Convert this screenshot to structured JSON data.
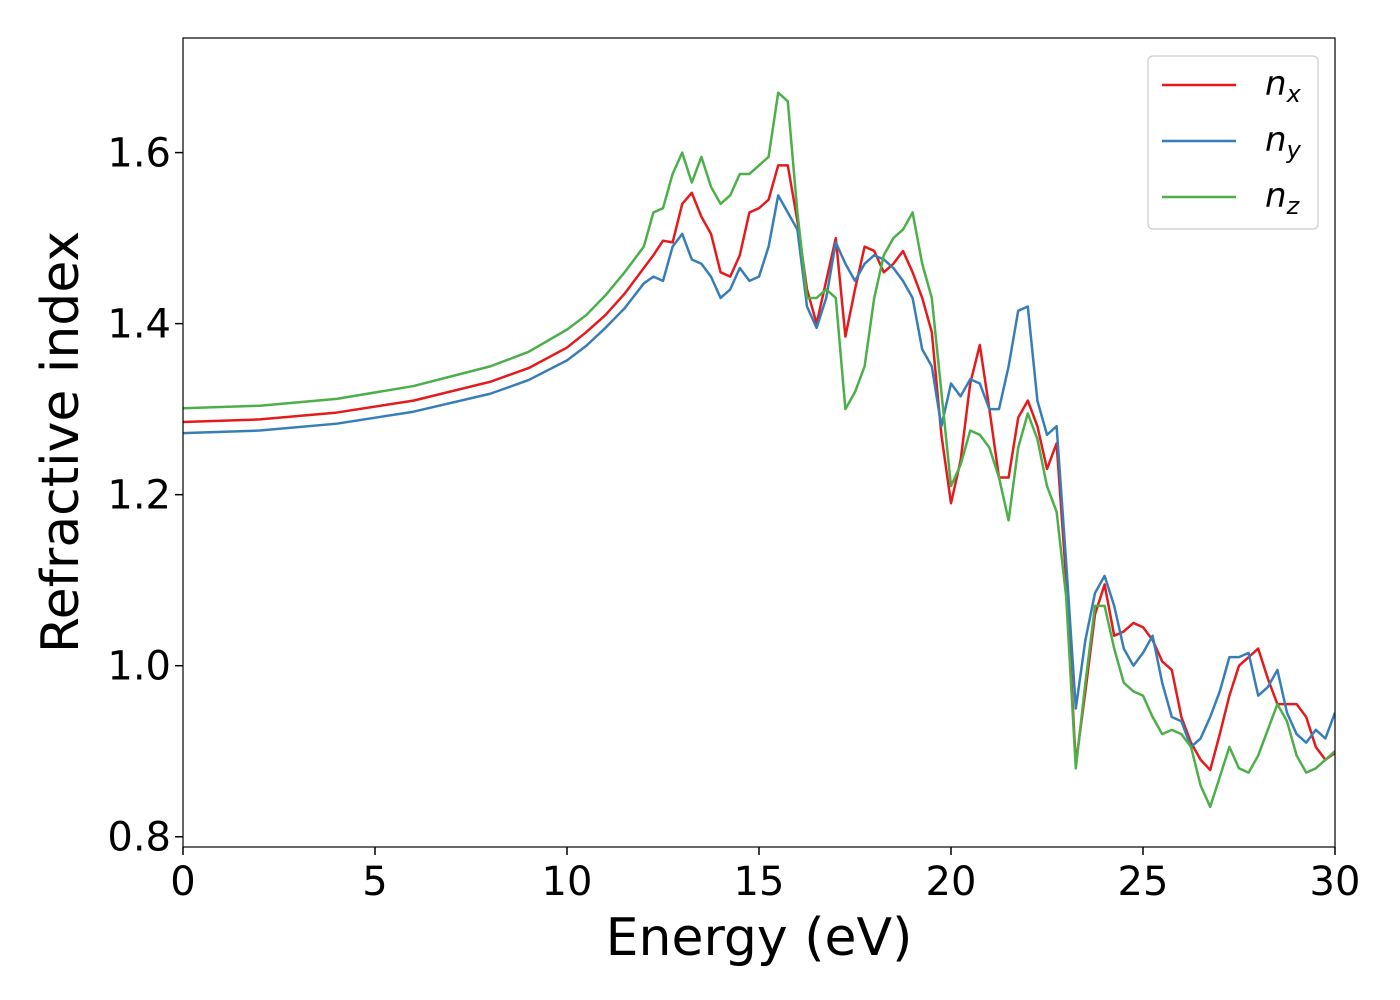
{
  "chart_data": {
    "type": "line",
    "xlabel": "Energy (eV)",
    "ylabel": "Refractive index",
    "xlim": [
      0,
      30
    ],
    "xticks": [
      0,
      5,
      10,
      15,
      20,
      25,
      30
    ],
    "ylim": [
      0.788,
      1.734
    ],
    "yticks": [
      0.8,
      {
        "value": 1,
        "label": "1.0"
      },
      1.2,
      1.4,
      1.6
    ],
    "grid": false,
    "legend": "upper right",
    "x": [
      0,
      2,
      4,
      6,
      8,
      9,
      10,
      10.5,
      11,
      11.5,
      12,
      12.25,
      12.5,
      12.75,
      13,
      13.25,
      13.5,
      13.75,
      14,
      14.25,
      14.5,
      14.75,
      15,
      15.25,
      15.5,
      15.75,
      16,
      16.25,
      16.5,
      16.75,
      17,
      17.25,
      17.5,
      17.75,
      18,
      18.25,
      18.5,
      18.75,
      19,
      19.25,
      19.5,
      19.75,
      20,
      20.25,
      20.5,
      20.75,
      21,
      21.25,
      21.5,
      21.75,
      22,
      22.25,
      22.5,
      22.75,
      23,
      23.25,
      23.5,
      23.75,
      24,
      24.25,
      24.5,
      24.75,
      25,
      25.25,
      25.5,
      25.75,
      26,
      26.25,
      26.5,
      26.75,
      27,
      27.25,
      27.5,
      27.75,
      28,
      28.25,
      28.5,
      28.75,
      29,
      29.25,
      29.5,
      29.75,
      30
    ],
    "series": [
      {
        "name": "nx",
        "color": "#e41a1c",
        "values": [
          1.285,
          1.288,
          1.296,
          1.31,
          1.332,
          1.348,
          1.372,
          1.39,
          1.41,
          1.435,
          1.465,
          1.48,
          1.497,
          1.495,
          1.54,
          1.553,
          1.525,
          1.505,
          1.46,
          1.455,
          1.48,
          1.53,
          1.535,
          1.545,
          1.585,
          1.585,
          1.52,
          1.44,
          1.4,
          1.45,
          1.5,
          1.385,
          1.44,
          1.49,
          1.485,
          1.46,
          1.47,
          1.485,
          1.46,
          1.43,
          1.39,
          1.27,
          1.19,
          1.24,
          1.33,
          1.375,
          1.3,
          1.22,
          1.22,
          1.29,
          1.31,
          1.28,
          1.23,
          1.26,
          1.1,
          0.885,
          0.97,
          1.06,
          1.095,
          1.035,
          1.04,
          1.05,
          1.045,
          1.03,
          1.005,
          0.995,
          0.94,
          0.91,
          0.89,
          0.878,
          0.92,
          0.965,
          1.0,
          1.01,
          1.02,
          0.985,
          0.955,
          0.955,
          0.955,
          0.94,
          0.905,
          0.89,
          0.898
        ]
      },
      {
        "name": "ny",
        "color": "#377eb8",
        "values": [
          1.272,
          1.275,
          1.283,
          1.297,
          1.318,
          1.334,
          1.357,
          1.374,
          1.395,
          1.418,
          1.447,
          1.455,
          1.45,
          1.49,
          1.505,
          1.475,
          1.47,
          1.455,
          1.43,
          1.44,
          1.465,
          1.45,
          1.455,
          1.49,
          1.55,
          1.53,
          1.51,
          1.42,
          1.395,
          1.43,
          1.495,
          1.47,
          1.45,
          1.47,
          1.48,
          1.475,
          1.465,
          1.45,
          1.43,
          1.37,
          1.35,
          1.28,
          1.33,
          1.315,
          1.335,
          1.33,
          1.3,
          1.3,
          1.35,
          1.415,
          1.42,
          1.31,
          1.27,
          1.28,
          1.12,
          0.95,
          1.03,
          1.085,
          1.105,
          1.07,
          1.02,
          1.0,
          1.015,
          1.035,
          0.98,
          0.94,
          0.935,
          0.905,
          0.915,
          0.94,
          0.97,
          1.01,
          1.01,
          1.015,
          0.965,
          0.975,
          0.995,
          0.945,
          0.92,
          0.91,
          0.925,
          0.915,
          0.945
        ]
      },
      {
        "name": "nz",
        "color": "#4daf4a",
        "values": [
          1.301,
          1.304,
          1.312,
          1.327,
          1.35,
          1.367,
          1.393,
          1.41,
          1.433,
          1.46,
          1.49,
          1.53,
          1.535,
          1.575,
          1.6,
          1.565,
          1.595,
          1.56,
          1.54,
          1.55,
          1.575,
          1.575,
          1.585,
          1.595,
          1.67,
          1.66,
          1.53,
          1.43,
          1.43,
          1.44,
          1.43,
          1.3,
          1.32,
          1.35,
          1.43,
          1.48,
          1.5,
          1.51,
          1.53,
          1.47,
          1.43,
          1.32,
          1.21,
          1.235,
          1.275,
          1.27,
          1.255,
          1.22,
          1.17,
          1.255,
          1.295,
          1.265,
          1.21,
          1.18,
          1.08,
          0.88,
          0.98,
          1.07,
          1.07,
          1.02,
          0.98,
          0.97,
          0.965,
          0.94,
          0.92,
          0.925,
          0.92,
          0.905,
          0.86,
          0.835,
          0.87,
          0.905,
          0.88,
          0.875,
          0.895,
          0.925,
          0.955,
          0.935,
          0.895,
          0.875,
          0.88,
          0.89,
          0.9
        ]
      }
    ]
  }
}
